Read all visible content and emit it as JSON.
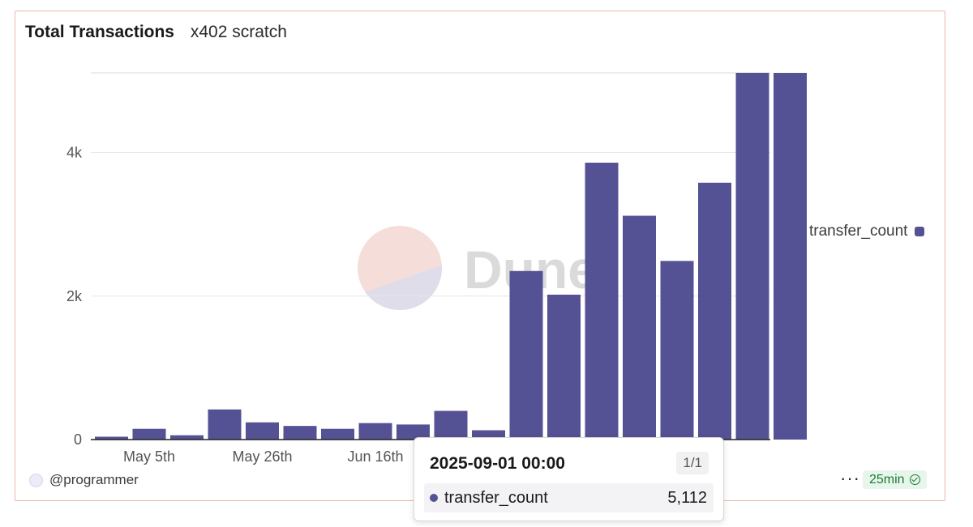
{
  "header": {
    "title": "Total Transactions",
    "subtitle": "x402 scratch"
  },
  "watermark": {
    "text": "Dune"
  },
  "legend": {
    "label": "transfer_count",
    "color": "#545194"
  },
  "footer": {
    "author": "@programmer",
    "more_icon": "ellipsis-icon",
    "freshness": "25min",
    "freshness_icon": "check-circle-icon"
  },
  "tooltip": {
    "date": "2025-09-01 00:00",
    "page": "1/1",
    "series_label": "transfer_count",
    "value": "5,112"
  },
  "chart_data": {
    "type": "bar",
    "title": "Total Transactions",
    "subtitle": "x402 scratch",
    "xlabel": "",
    "ylabel": "",
    "categories": [
      "2025-04-28",
      "2025-05-05",
      "2025-05-12",
      "2025-05-19",
      "2025-05-26",
      "2025-06-02",
      "2025-06-09",
      "2025-06-16",
      "2025-06-23",
      "2025-06-30",
      "2025-07-07",
      "2025-07-14",
      "2025-07-21",
      "2025-07-28",
      "2025-08-04",
      "2025-08-11",
      "2025-08-18",
      "2025-08-25",
      "2025-09-01"
    ],
    "x_tick_labels": [
      {
        "category": "2025-05-05",
        "label": "May 5th"
      },
      {
        "category": "2025-05-26",
        "label": "May 26th"
      },
      {
        "category": "2025-06-16",
        "label": "Jun 16th"
      }
    ],
    "series": [
      {
        "name": "transfer_count",
        "color": "#545194",
        "values": [
          40,
          150,
          60,
          420,
          240,
          190,
          150,
          230,
          210,
          400,
          130,
          2350,
          2020,
          3860,
          3120,
          2490,
          3580,
          5112,
          5112
        ]
      }
    ],
    "ylim": [
      0,
      5112
    ],
    "yticks": [
      {
        "value": 0,
        "label": "0"
      },
      {
        "value": 2000,
        "label": "2k"
      },
      {
        "value": 4000,
        "label": "4k"
      }
    ],
    "grid": true,
    "legend_position": "right"
  }
}
